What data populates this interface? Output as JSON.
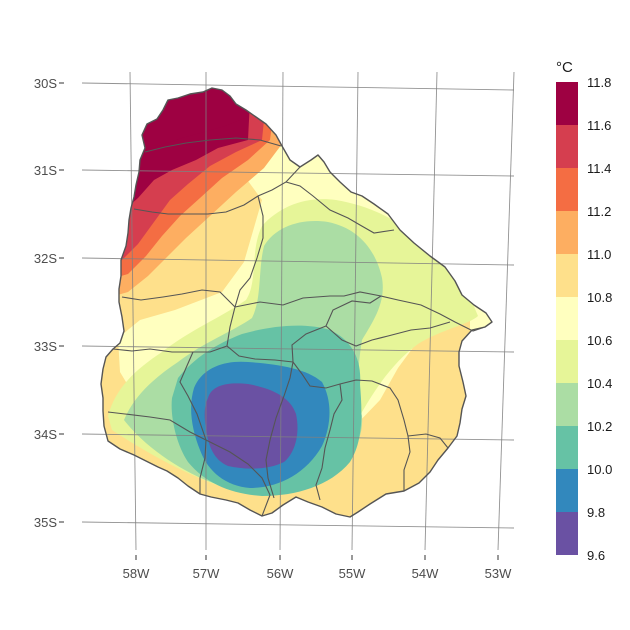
{
  "chart_data": {
    "type": "heatmap",
    "title": "",
    "xlabel": "",
    "ylabel": "",
    "x_tick_labels": [
      "58W",
      "57W",
      "56W",
      "55W",
      "54W",
      "53W"
    ],
    "y_tick_labels": [
      "30S",
      "31S",
      "32S",
      "33S",
      "34S",
      "35S"
    ],
    "graticule": true,
    "legend": {
      "title": "°C",
      "placement": "right",
      "labels": [
        "11.8",
        "11.6",
        "11.4",
        "11.2",
        "11.0",
        "10.8",
        "10.6",
        "10.4",
        "10.2",
        "10.0",
        "9.8",
        "9.6"
      ],
      "classes": [
        {
          "from": 9.6,
          "to": 9.8,
          "color": "#6a51a3"
        },
        {
          "from": 9.8,
          "to": 10.0,
          "color": "#3288bd"
        },
        {
          "from": 10.0,
          "to": 10.2,
          "color": "#66c2a5"
        },
        {
          "from": 10.2,
          "to": 10.4,
          "color": "#abdda4"
        },
        {
          "from": 10.4,
          "to": 10.6,
          "color": "#e6f598"
        },
        {
          "from": 10.6,
          "to": 10.8,
          "color": "#ffffbf"
        },
        {
          "from": 10.8,
          "to": 11.0,
          "color": "#fee08b"
        },
        {
          "from": 11.0,
          "to": 11.2,
          "color": "#fdae61"
        },
        {
          "from": 11.2,
          "to": 11.4,
          "color": "#f46d43"
        },
        {
          "from": 11.4,
          "to": 11.6,
          "color": "#d53e4f"
        },
        {
          "from": 11.6,
          "to": 11.8,
          "color": "#9e0142"
        }
      ]
    },
    "value_range": [
      9.6,
      11.8
    ],
    "hot_spot": {
      "lon": -57.3,
      "lat": -30.3,
      "value": 11.8
    },
    "cold_spot": {
      "lon": -56.5,
      "lat": -33.9,
      "value": 9.7
    }
  }
}
